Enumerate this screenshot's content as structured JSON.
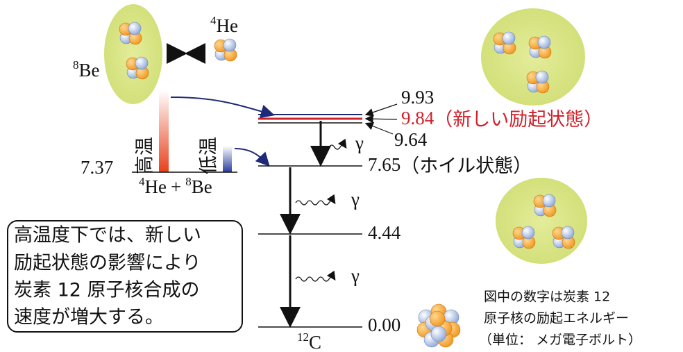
{
  "top_left": {
    "be8": {
      "mass": "8",
      "symbol": "Be"
    },
    "he4": {
      "mass": "4",
      "symbol": "He"
    }
  },
  "levels": [
    {
      "energy": "9.93"
    },
    {
      "energy": "9.84",
      "label": "（新しい励起状態）"
    },
    {
      "energy": "9.64"
    },
    {
      "energy": "7.65",
      "label": "（ホイル状態）"
    },
    {
      "energy": "4.44"
    },
    {
      "energy": "0.00"
    }
  ],
  "threshold": {
    "energy": "7.37",
    "reaction": {
      "mass1": "4",
      "symbol1": "He",
      "plus": "+",
      "mass2": "8",
      "symbol2": "Be"
    },
    "high_temp": "高温",
    "low_temp": "低温"
  },
  "gamma": [
    "γ",
    "γ",
    "γ"
  ],
  "ground": {
    "mass": "12",
    "symbol": "C"
  },
  "callout": [
    "高温度下では、新しい",
    "励起状態の影響により",
    "炭素 12 原子核合成の",
    "速度が増大する。"
  ],
  "note": [
    "図中の数字は炭素 12",
    "原子核の励起エネルギー",
    "（単位： メガ電子ボルト）"
  ]
}
